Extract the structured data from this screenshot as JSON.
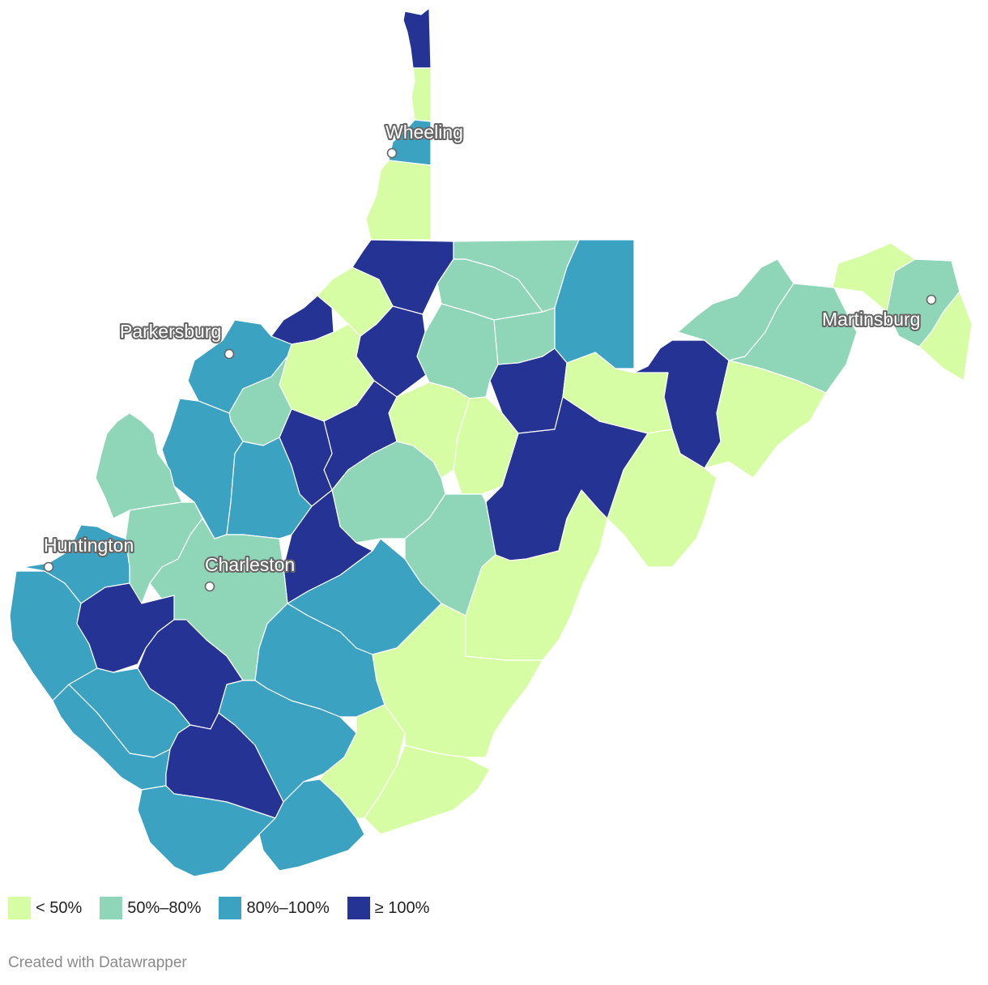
{
  "colors": {
    "lt50": "#d7fda4",
    "50to80": "#8fd6b8",
    "80to100": "#3ba2c2",
    "gte100": "#253494"
  },
  "cities": {
    "wheeling": "Wheeling",
    "parkersburg": "Parkersburg",
    "huntington": "Huntington",
    "charleston": "Charleston",
    "martinsburg": "Martinsburg"
  },
  "legend": {
    "items": [
      {
        "label": "< 50%",
        "color": "#d7fda4"
      },
      {
        "label": "50%–80%",
        "color": "#8fd6b8"
      },
      {
        "label": "80%–100%",
        "color": "#3ba2c2"
      },
      {
        "label": "≥ 100%",
        "color": "#253494"
      }
    ]
  },
  "credit": "Created with Datawrapper"
}
